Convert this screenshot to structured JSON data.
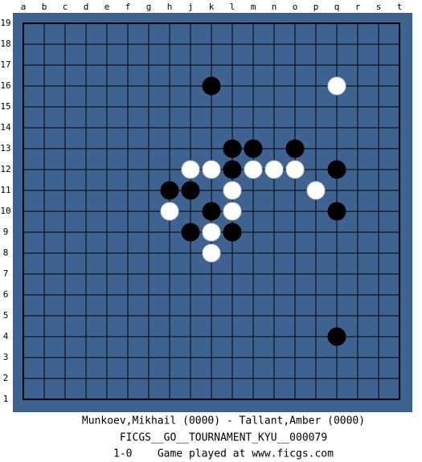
{
  "board": {
    "columns": [
      "a",
      "b",
      "c",
      "d",
      "e",
      "f",
      "g",
      "h",
      "j",
      "k",
      "l",
      "m",
      "n",
      "o",
      "p",
      "q",
      "r",
      "s",
      "t"
    ],
    "rows": [
      19,
      18,
      17,
      16,
      15,
      14,
      13,
      12,
      11,
      10,
      9,
      8,
      7,
      6,
      5,
      4,
      3,
      2,
      1
    ],
    "stones": [
      {
        "color": "black",
        "col": "k",
        "row": 16
      },
      {
        "color": "white",
        "col": "q",
        "row": 16
      },
      {
        "color": "black",
        "col": "l",
        "row": 13
      },
      {
        "color": "black",
        "col": "m",
        "row": 13
      },
      {
        "color": "black",
        "col": "o",
        "row": 13
      },
      {
        "color": "white",
        "col": "j",
        "row": 12
      },
      {
        "color": "white",
        "col": "k",
        "row": 12
      },
      {
        "color": "black",
        "col": "l",
        "row": 12
      },
      {
        "color": "white",
        "col": "m",
        "row": 12
      },
      {
        "color": "white",
        "col": "n",
        "row": 12
      },
      {
        "color": "white",
        "col": "o",
        "row": 12
      },
      {
        "color": "black",
        "col": "q",
        "row": 12
      },
      {
        "color": "black",
        "col": "h",
        "row": 11
      },
      {
        "color": "black",
        "col": "j",
        "row": 11
      },
      {
        "color": "white",
        "col": "l",
        "row": 11
      },
      {
        "color": "white",
        "col": "p",
        "row": 11
      },
      {
        "color": "white",
        "col": "h",
        "row": 10
      },
      {
        "color": "black",
        "col": "k",
        "row": 10
      },
      {
        "color": "white",
        "col": "l",
        "row": 10
      },
      {
        "color": "black",
        "col": "q",
        "row": 10
      },
      {
        "color": "black",
        "col": "j",
        "row": 9
      },
      {
        "color": "white",
        "col": "k",
        "row": 9
      },
      {
        "color": "black",
        "col": "l",
        "row": 9
      },
      {
        "color": "white",
        "col": "k",
        "row": 8
      },
      {
        "color": "black",
        "col": "q",
        "row": 4
      }
    ]
  },
  "footer": {
    "players": "Munkoev,Mikhail (0000) - Tallant,Amber (0000)",
    "tournament": "FICGS__GO__TOURNAMENT_KYU__000079",
    "result": "1-0    Game played at www.ficgs.com"
  }
}
